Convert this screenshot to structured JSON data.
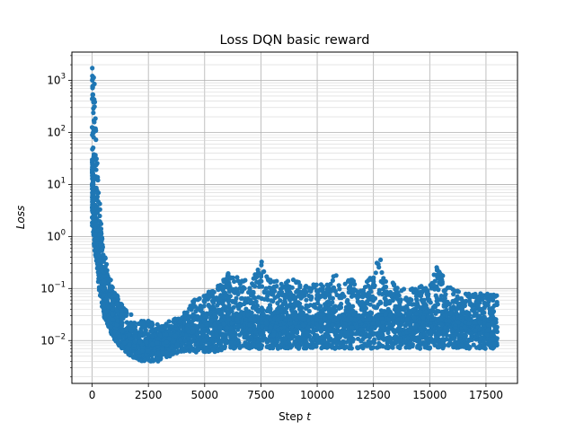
{
  "chart_data": {
    "type": "scatter",
    "title": "Loss DQN basic reward",
    "xlabel": "Step",
    "xlabel_var": "t",
    "ylabel": "Loss",
    "ylog": true,
    "xlim": [
      -900,
      18900
    ],
    "ylim": [
      0.0015,
      3500
    ],
    "grid": "on (major and minor)",
    "xticks": [
      0,
      2500,
      5000,
      7500,
      10000,
      12500,
      15000,
      17500
    ],
    "xtick_labels": [
      "0",
      "2500",
      "5000",
      "7500",
      "10000",
      "12500",
      "15000",
      "17500"
    ],
    "yticks": [
      0.01,
      0.1,
      1,
      10,
      100,
      1000
    ],
    "ytick_mantissa": "10",
    "ytick_exponents": [
      "−2",
      "−1",
      "0",
      "1",
      "2",
      "3"
    ],
    "series": [
      {
        "color": "#1f77b4",
        "x_range": [
          0,
          18000
        ],
        "envelope": {
          "x": [
            0,
            50,
            100,
            200,
            300,
            400,
            500,
            700,
            900,
            1200,
            1500,
            2000,
            2500,
            3000,
            3500,
            4000,
            4500,
            5000,
            5500,
            6000,
            7000,
            7500,
            8000,
            9000,
            10000,
            11000,
            12000,
            12800,
            13000,
            14000,
            15000,
            15200,
            16000,
            17000,
            18000
          ],
          "upper": [
            1800,
            1500,
            900,
            40,
            8,
            2,
            0.6,
            0.25,
            0.12,
            0.06,
            0.04,
            0.025,
            0.025,
            0.02,
            0.025,
            0.03,
            0.06,
            0.08,
            0.1,
            0.2,
            0.15,
            0.35,
            0.15,
            0.15,
            0.12,
            0.2,
            0.12,
            0.4,
            0.15,
            0.1,
            0.12,
            0.3,
            0.1,
            0.08,
            0.08
          ],
          "lower": [
            1.5,
            1,
            0.6,
            0.3,
            0.1,
            0.05,
            0.03,
            0.02,
            0.012,
            0.008,
            0.006,
            0.004,
            0.004,
            0.004,
            0.005,
            0.006,
            0.006,
            0.006,
            0.006,
            0.007,
            0.007,
            0.007,
            0.007,
            0.007,
            0.007,
            0.007,
            0.007,
            0.007,
            0.007,
            0.007,
            0.007,
            0.007,
            0.007,
            0.007,
            0.007
          ],
          "center": [
            20,
            8,
            3,
            1,
            0.4,
            0.2,
            0.1,
            0.05,
            0.03,
            0.018,
            0.012,
            0.009,
            0.009,
            0.009,
            0.011,
            0.013,
            0.017,
            0.02,
            0.022,
            0.025,
            0.025,
            0.025,
            0.025,
            0.025,
            0.025,
            0.025,
            0.025,
            0.025,
            0.025,
            0.025,
            0.024,
            0.024,
            0.023,
            0.022,
            0.022
          ]
        }
      }
    ]
  }
}
